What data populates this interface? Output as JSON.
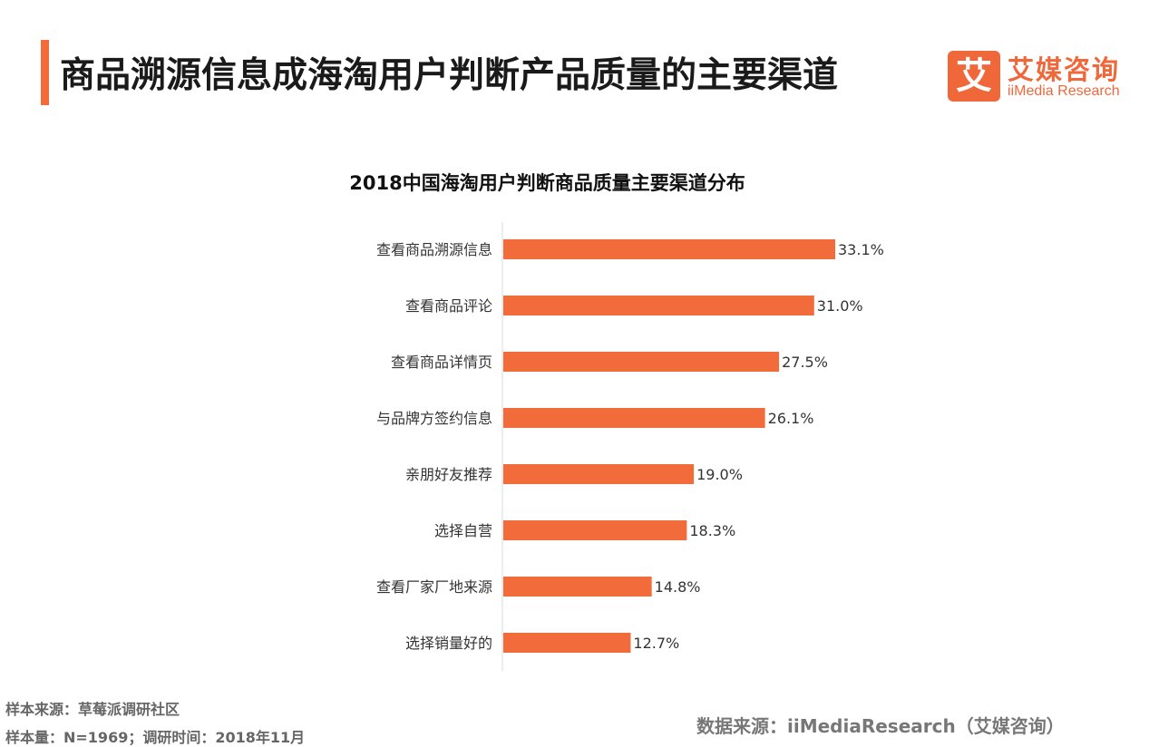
{
  "header": {
    "title": "商品溯源信息成海淘用户判断产品质量的主要渠道",
    "logo_cn": "艾媒咨询",
    "logo_en": "iiMedia Research",
    "logo_mark": "艾"
  },
  "colors": {
    "accent": "#f26b3a",
    "bar": "#f26b3a",
    "logo": "#f0673a"
  },
  "chart_data": {
    "type": "bar",
    "orientation": "horizontal",
    "title": "2018中国海淘用户判断商品质量主要渠道分布",
    "categories": [
      "查看商品溯源信息",
      "查看商品评论",
      "查看商品详情页",
      "与品牌方签约信息",
      "亲朋好友推荐",
      "选择自营",
      "查看厂家厂地来源",
      "选择销量好的"
    ],
    "values": [
      33.1,
      31.0,
      27.5,
      26.1,
      19.0,
      18.3,
      14.8,
      12.7
    ],
    "data_labels": [
      "33.1%",
      "31.0%",
      "27.5%",
      "26.1%",
      "19.0%",
      "18.3%",
      "14.8%",
      "12.7%"
    ],
    "unit": "%",
    "xlim": [
      0,
      35
    ],
    "grid": false,
    "legend": "none"
  },
  "footer": {
    "sample_source": "样本来源：草莓派调研社区",
    "sample_info": "样本量：N=1969；调研时间：2018年11月",
    "data_source": "数据来源：iiMediaResearch（艾媒咨询）"
  }
}
